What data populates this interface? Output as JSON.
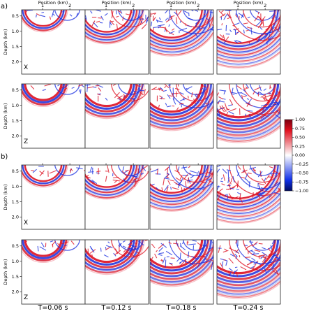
{
  "figure": {
    "section_labels": [
      "a)",
      "b)"
    ],
    "x_axis_label": "Position (km)",
    "x_tick_labels": [
      "1",
      "2"
    ],
    "y_axis_label": "Depth (km)",
    "y_tick_labels": [
      "0.5",
      "1.0",
      "1.5",
      "2.0"
    ],
    "component_labels": [
      "X",
      "Z",
      "X",
      "Z"
    ],
    "time_labels": [
      "T=0.06 s",
      "T=0.12 s",
      "T=0.18 s",
      "T=0.24 s"
    ],
    "colorbar": {
      "ticks": [
        "1.00",
        "0.75",
        "0.50",
        "0.25",
        "0.00",
        "−0.25",
        "−0.50",
        "−0.75",
        "−1.00"
      ],
      "vmin": -1.0,
      "vmax": 1.0,
      "colormap": "seismic (blue-white-red)",
      "colors": {
        "negative": "#2233dd",
        "zero": "#ffffff",
        "positive": "#dd1122"
      }
    }
  }
}
